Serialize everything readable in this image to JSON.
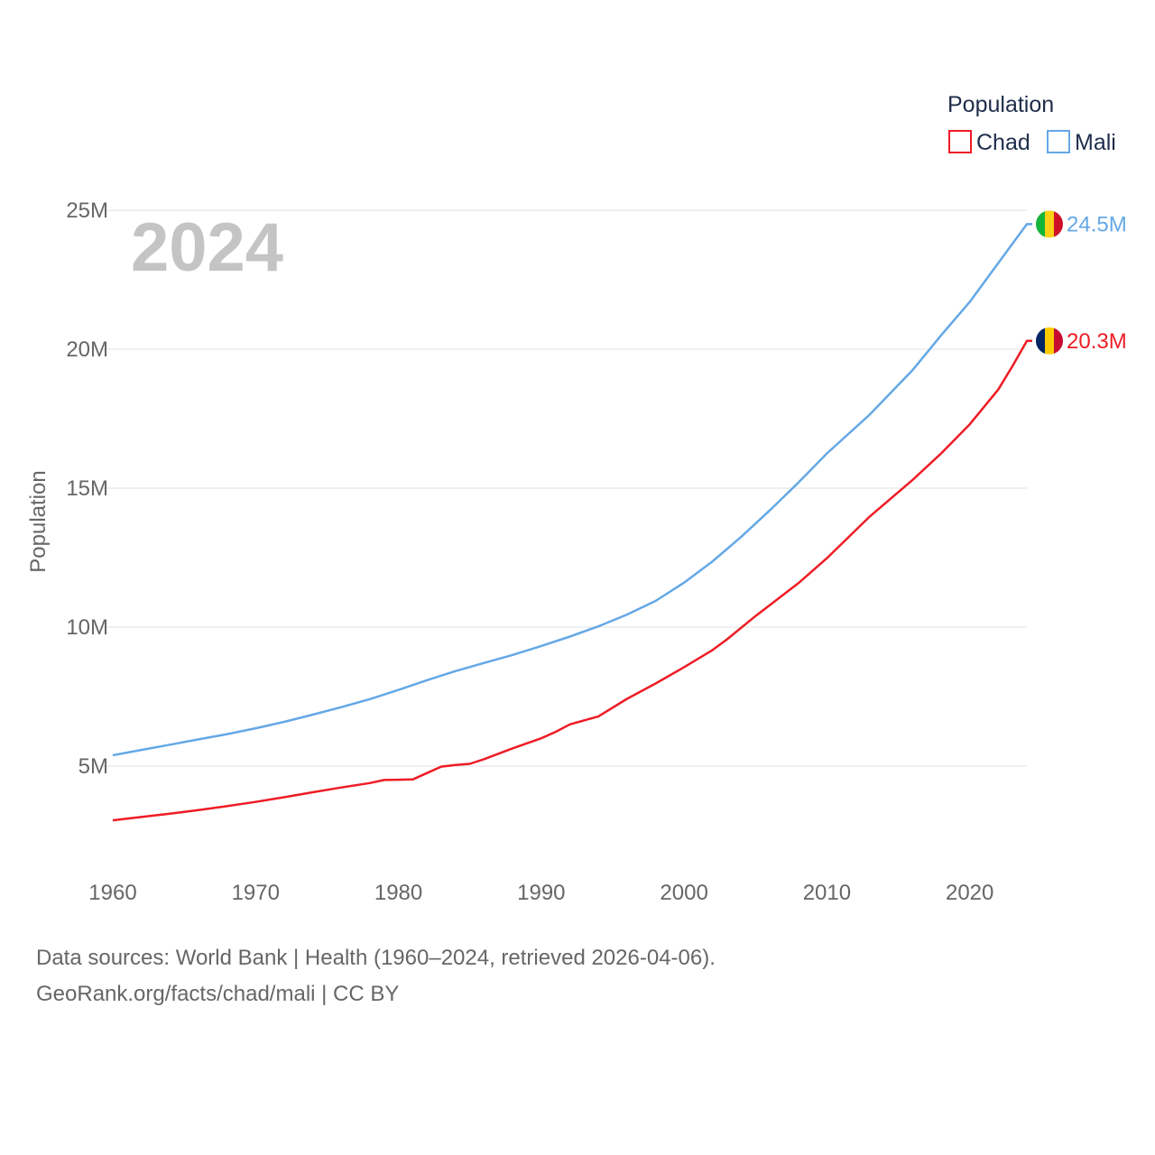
{
  "chart_data": {
    "type": "line",
    "title": "",
    "year_label": "2024",
    "xlabel": "",
    "ylabel": "Population",
    "xlim": [
      1960,
      2024
    ],
    "ylim": [
      2000000,
      25000000
    ],
    "x_ticks": [
      1960,
      1970,
      1980,
      1990,
      2000,
      2010,
      2020
    ],
    "x_tick_labels": [
      "1960",
      "1970",
      "1980",
      "1990",
      "2000",
      "2010",
      "2020"
    ],
    "y_ticks": [
      5000000,
      10000000,
      15000000,
      20000000,
      25000000
    ],
    "y_tick_labels": [
      "5M",
      "10M",
      "15M",
      "20M",
      "25M"
    ],
    "legend": {
      "title": "Population",
      "placement": "top-right",
      "entries": [
        "Chad",
        "Mali"
      ]
    },
    "series": [
      {
        "name": "Chad",
        "color": "#ee1c25",
        "end_label": "20.3M",
        "flag_colors": [
          "#002664",
          "#fecb00",
          "#c60c30"
        ],
        "x": [
          1960,
          1962,
          1964,
          1966,
          1968,
          1970,
          1972,
          1974,
          1976,
          1978,
          1979,
          1980,
          1981,
          1982,
          1983,
          1984,
          1985,
          1986,
          1988,
          1990,
          1991,
          1992,
          1994,
          1996,
          1998,
          2000,
          2002,
          2003,
          2005,
          2008,
          2010,
          2013,
          2016,
          2018,
          2020,
          2022,
          2023,
          2024
        ],
        "values": [
          3050000,
          3170000,
          3290000,
          3420000,
          3560000,
          3710000,
          3880000,
          4060000,
          4230000,
          4390000,
          4500000,
          4510000,
          4520000,
          4750000,
          4980000,
          5040000,
          5080000,
          5250000,
          5640000,
          6000000,
          6230000,
          6500000,
          6790000,
          7420000,
          7970000,
          8560000,
          9180000,
          9560000,
          10400000,
          11580000,
          12480000,
          13980000,
          15300000,
          16250000,
          17300000,
          18550000,
          19400000,
          20300000
        ]
      },
      {
        "name": "Mali",
        "color": "#64a8e6",
        "end_label": "24.5M",
        "flag_colors": [
          "#14b53a",
          "#fcd116",
          "#ce1126"
        ],
        "x": [
          1960,
          1962,
          1964,
          1966,
          1968,
          1970,
          1972,
          1974,
          1976,
          1978,
          1980,
          1982,
          1984,
          1986,
          1988,
          1990,
          1992,
          1994,
          1996,
          1998,
          2000,
          2002,
          2004,
          2006,
          2008,
          2010,
          2013,
          2016,
          2018,
          2020,
          2022,
          2024
        ],
        "values": [
          5390000,
          5580000,
          5770000,
          5960000,
          6150000,
          6360000,
          6590000,
          6850000,
          7120000,
          7410000,
          7740000,
          8090000,
          8420000,
          8710000,
          9000000,
          9320000,
          9660000,
          10030000,
          10450000,
          10940000,
          11600000,
          12370000,
          13250000,
          14200000,
          15200000,
          16250000,
          17650000,
          19250000,
          20500000,
          21700000,
          23100000,
          24500000
        ]
      }
    ],
    "background_color": "#ffffff",
    "grid_color": "#e6e6e6"
  },
  "footer": {
    "line1": "Data sources: World Bank | Health (1960–2024, retrieved 2026-04-06).",
    "line2": "GeoRank.org/facts/chad/mali | CC BY"
  }
}
